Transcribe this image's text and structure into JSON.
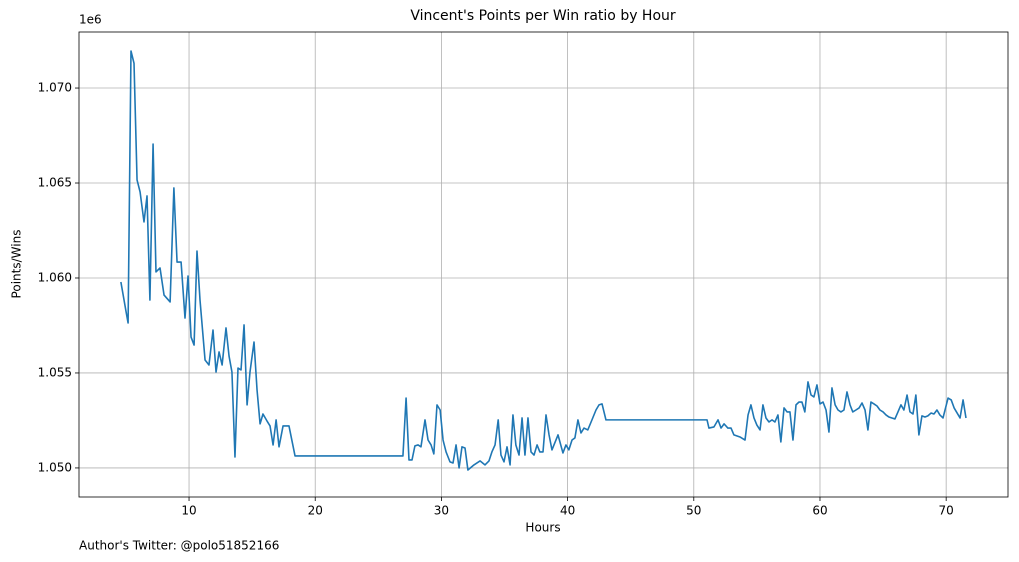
{
  "chart_data": {
    "type": "line",
    "title": "Vincent's Points per Win ratio by Hour",
    "x_label": "Hours",
    "y_label": "Points/Wins",
    "y_offset_label": "1e6",
    "footnote": "Author's Twitter: @polo51852166",
    "color": "#1f77b4",
    "grid": true,
    "xlim": [
      1.28,
      74.9
    ],
    "ylim": [
      1048470,
      1072950
    ],
    "xticks": [
      10,
      20,
      30,
      40,
      50,
      60,
      70
    ],
    "yticks": [
      {
        "value": 1050000,
        "label": "1.050"
      },
      {
        "value": 1055000,
        "label": "1.055"
      },
      {
        "value": 1060000,
        "label": "1.060"
      },
      {
        "value": 1065000,
        "label": "1.065"
      },
      {
        "value": 1070000,
        "label": "1.070"
      }
    ],
    "x": [
      4.6,
      5.0,
      5.17,
      5.4,
      5.64,
      5.88,
      6.12,
      6.43,
      6.67,
      6.9,
      7.15,
      7.38,
      7.7,
      8.02,
      8.5,
      8.8,
      9.05,
      9.37,
      9.68,
      9.92,
      10.16,
      10.4,
      10.63,
      10.87,
      11.27,
      11.58,
      11.9,
      12.14,
      12.38,
      12.62,
      12.93,
      13.17,
      13.4,
      13.64,
      13.88,
      14.12,
      14.36,
      14.6,
      14.83,
      15.15,
      15.39,
      15.63,
      15.86,
      16.18,
      16.42,
      16.66,
      16.9,
      17.13,
      17.45,
      17.92,
      18.4,
      26.95,
      27.2,
      27.43,
      27.67,
      27.9,
      28.15,
      28.38,
      28.7,
      28.94,
      29.18,
      29.4,
      29.65,
      29.9,
      30.13,
      30.37,
      30.68,
      30.92,
      31.16,
      31.4,
      31.63,
      31.87,
      32.1,
      32.58,
      33.06,
      33.45,
      33.77,
      34.0,
      34.25,
      34.5,
      34.72,
      34.96,
      35.2,
      35.44,
      35.67,
      35.9,
      36.15,
      36.39,
      36.62,
      36.86,
      37.1,
      37.34,
      37.58,
      37.8,
      38.05,
      38.29,
      38.53,
      38.76,
      39.24,
      39.63,
      39.87,
      40.1,
      40.35,
      40.58,
      40.82,
      41.06,
      41.3,
      41.6,
      41.93,
      42.25,
      42.49,
      42.73,
      43.04,
      51.05,
      51.2,
      51.6,
      51.92,
      52.16,
      52.4,
      52.7,
      52.95,
      53.18,
      53.66,
      54.06,
      54.3,
      54.53,
      54.77,
      55.0,
      55.25,
      55.48,
      55.72,
      55.96,
      56.2,
      56.43,
      56.67,
      56.9,
      57.15,
      57.39,
      57.62,
      57.86,
      58.1,
      58.34,
      58.57,
      58.8,
      59.05,
      59.29,
      59.52,
      59.76,
      60.0,
      60.24,
      60.48,
      60.71,
      60.95,
      61.2,
      61.43,
      61.66,
      61.9,
      62.14,
      62.38,
      62.6,
      62.85,
      63.1,
      63.33,
      63.57,
      63.8,
      64.04,
      64.28,
      64.52,
      64.75,
      65.0,
      65.23,
      65.47,
      65.7,
      65.94,
      66.18,
      66.42,
      66.65,
      66.9,
      67.13,
      67.37,
      67.6,
      67.84,
      68.08,
      68.32,
      68.55,
      68.8,
      69.03,
      69.27,
      69.5,
      69.75,
      70.15,
      70.4,
      70.63,
      70.87,
      71.1,
      71.34,
      71.57
    ],
    "values": [
      1059790,
      1058260,
      1057630,
      1071950,
      1071300,
      1065160,
      1064530,
      1062950,
      1064320,
      1058840,
      1067050,
      1060320,
      1060530,
      1059100,
      1058740,
      1064740,
      1060840,
      1060840,
      1057890,
      1060100,
      1056890,
      1056470,
      1061420,
      1058840,
      1055680,
      1055420,
      1057260,
      1055050,
      1056110,
      1055420,
      1057370,
      1055890,
      1055050,
      1050580,
      1055260,
      1055160,
      1057530,
      1053320,
      1055050,
      1056630,
      1054100,
      1052320,
      1052840,
      1052470,
      1052210,
      1051210,
      1052530,
      1051110,
      1052210,
      1052210,
      1050630,
      1050630,
      1053680,
      1050420,
      1050420,
      1051160,
      1051210,
      1051110,
      1052530,
      1051470,
      1051210,
      1050740,
      1053320,
      1053050,
      1051470,
      1050840,
      1050320,
      1050260,
      1051210,
      1050000,
      1051110,
      1051050,
      1049890,
      1050160,
      1050370,
      1050160,
      1050370,
      1050840,
      1051210,
      1052530,
      1050680,
      1050320,
      1051110,
      1050160,
      1052790,
      1051210,
      1050680,
      1052630,
      1050680,
      1052630,
      1050840,
      1050680,
      1051210,
      1050840,
      1050840,
      1052790,
      1051740,
      1050950,
      1051740,
      1050790,
      1051210,
      1050950,
      1051470,
      1051580,
      1052530,
      1051840,
      1052100,
      1052000,
      1052530,
      1053050,
      1053320,
      1053370,
      1052530,
      1052530,
      1052100,
      1052160,
      1052530,
      1052100,
      1052320,
      1052100,
      1052100,
      1051740,
      1051630,
      1051470,
      1052790,
      1053320,
      1052630,
      1052260,
      1052000,
      1053320,
      1052630,
      1052420,
      1052530,
      1052420,
      1052790,
      1051370,
      1053160,
      1052950,
      1052950,
      1051470,
      1053320,
      1053470,
      1053470,
      1052950,
      1054530,
      1053840,
      1053740,
      1054370,
      1053370,
      1053470,
      1053050,
      1051890,
      1054210,
      1053320,
      1053050,
      1052950,
      1053050,
      1054000,
      1053320,
      1052950,
      1053050,
      1053160,
      1053420,
      1053050,
      1052000,
      1053470,
      1053370,
      1053260,
      1053050,
      1052950,
      1052790,
      1052680,
      1052630,
      1052580,
      1052950,
      1053320,
      1053050,
      1053840,
      1052950,
      1052840,
      1053840,
      1051740,
      1052740,
      1052680,
      1052740,
      1052890,
      1052840,
      1053050,
      1052790,
      1052630,
      1053680,
      1053580,
      1053160,
      1052890,
      1052630,
      1053580,
      1052630
    ]
  }
}
